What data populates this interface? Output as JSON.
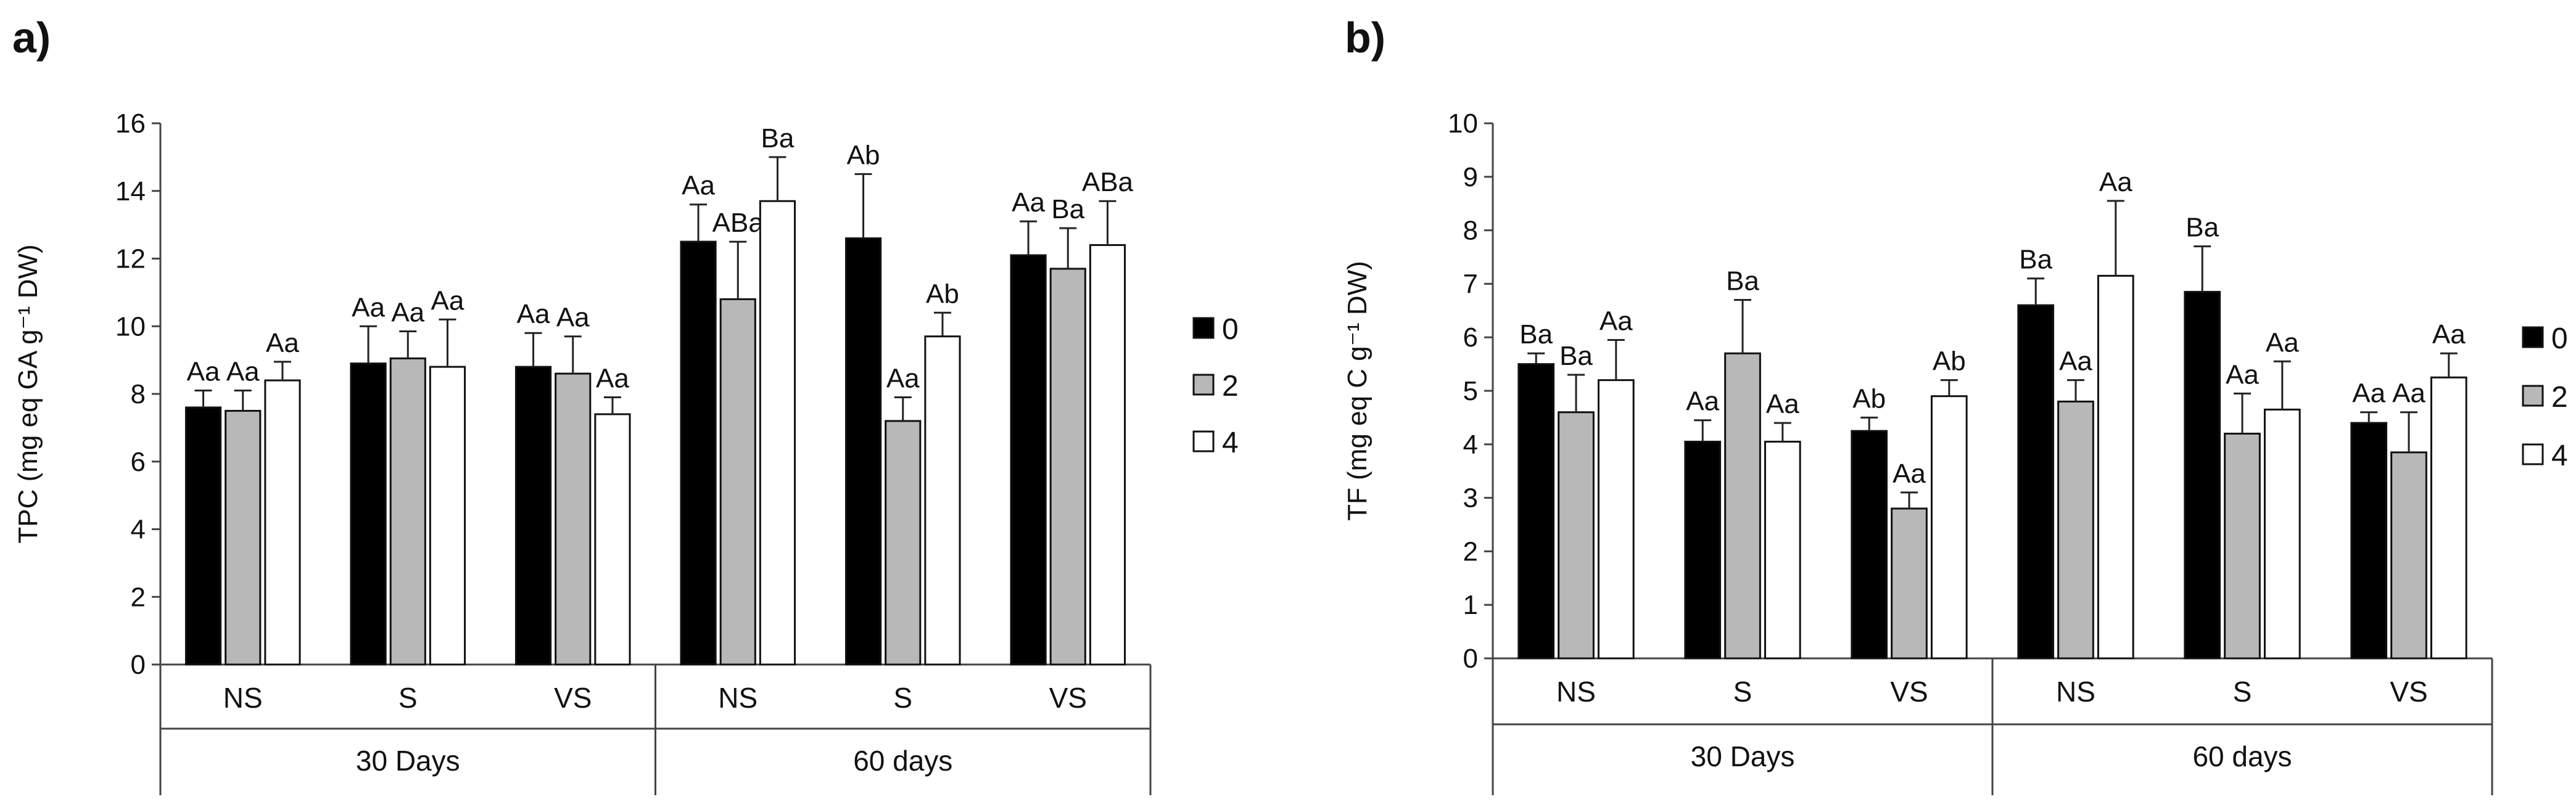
{
  "chart_data": [
    {
      "type": "bar",
      "panel_label": "a)",
      "ylabel": "TPC (mg eq GA g⁻¹ DW)",
      "ylim": [
        0,
        16
      ],
      "yticks": [
        "0",
        "2",
        "4",
        "6",
        "8",
        "10",
        "12",
        "14",
        "16"
      ],
      "grid": false,
      "legend_position": "right",
      "categories": [
        "NS",
        "S",
        "VS",
        "NS",
        "S",
        "VS"
      ],
      "groups": [
        {
          "label": "30 Days",
          "span": [
            0,
            2
          ]
        },
        {
          "label": "60 days",
          "span": [
            3,
            5
          ]
        }
      ],
      "series": [
        {
          "name": "0",
          "color": "#000000",
          "values": [
            7.6,
            8.9,
            8.8,
            12.5,
            12.6,
            12.1
          ],
          "errors": [
            0.5,
            1.1,
            1.0,
            1.1,
            1.9,
            1.0
          ],
          "labels": [
            "Aa",
            "Aa",
            "Aa",
            "Aa",
            "Ab",
            "Aa"
          ]
        },
        {
          "name": "2",
          "color": "#b8b8b8",
          "values": [
            7.5,
            9.05,
            8.6,
            10.8,
            7.2,
            11.7
          ],
          "errors": [
            0.6,
            0.8,
            1.1,
            1.7,
            0.7,
            1.2
          ],
          "labels": [
            "Aa",
            "Aa",
            "Aa",
            "ABa",
            "Aa",
            "Ba"
          ]
        },
        {
          "name": "4",
          "color": "#ffffff",
          "values": [
            8.4,
            8.8,
            7.4,
            13.7,
            9.7,
            12.4
          ],
          "errors": [
            0.55,
            1.4,
            0.5,
            1.3,
            0.7,
            1.3
          ],
          "labels": [
            "Aa",
            "Aa",
            "Aa",
            "Ba",
            "Ab",
            "ABa"
          ]
        }
      ]
    },
    {
      "type": "bar",
      "panel_label": "b)",
      "ylabel": "TF (mg eq C g⁻¹ DW)",
      "ylim": [
        0,
        10
      ],
      "yticks": [
        "0",
        "1",
        "2",
        "3",
        "4",
        "5",
        "6",
        "7",
        "8",
        "9",
        "10"
      ],
      "grid": false,
      "legend_position": "right",
      "categories": [
        "NS",
        "S",
        "VS",
        "NS",
        "S",
        "VS"
      ],
      "groups": [
        {
          "label": "30 Days",
          "span": [
            0,
            2
          ]
        },
        {
          "label": "60 days",
          "span": [
            3,
            5
          ]
        }
      ],
      "series": [
        {
          "name": "0",
          "color": "#000000",
          "values": [
            5.5,
            4.05,
            4.25,
            6.6,
            6.85,
            4.4
          ],
          "errors": [
            0.2,
            0.4,
            0.25,
            0.5,
            0.85,
            0.2
          ],
          "labels": [
            "Ba",
            "Aa",
            "Ab",
            "Ba",
            "Ba",
            "Aa"
          ]
        },
        {
          "name": "2",
          "color": "#b8b8b8",
          "values": [
            4.6,
            5.7,
            2.8,
            4.8,
            4.2,
            3.85
          ],
          "errors": [
            0.7,
            1.0,
            0.3,
            0.4,
            0.75,
            0.75
          ],
          "labels": [
            "Ba",
            "Ba",
            "Aa",
            "Aa",
            "Aa",
            "Aa"
          ]
        },
        {
          "name": "4",
          "color": "#ffffff",
          "values": [
            5.2,
            4.05,
            4.9,
            7.15,
            4.65,
            5.25
          ],
          "errors": [
            0.75,
            0.35,
            0.3,
            1.4,
            0.9,
            0.45
          ],
          "labels": [
            "Aa",
            "Aa",
            "Ab",
            "Aa",
            "Aa",
            "Aa"
          ]
        }
      ]
    }
  ]
}
